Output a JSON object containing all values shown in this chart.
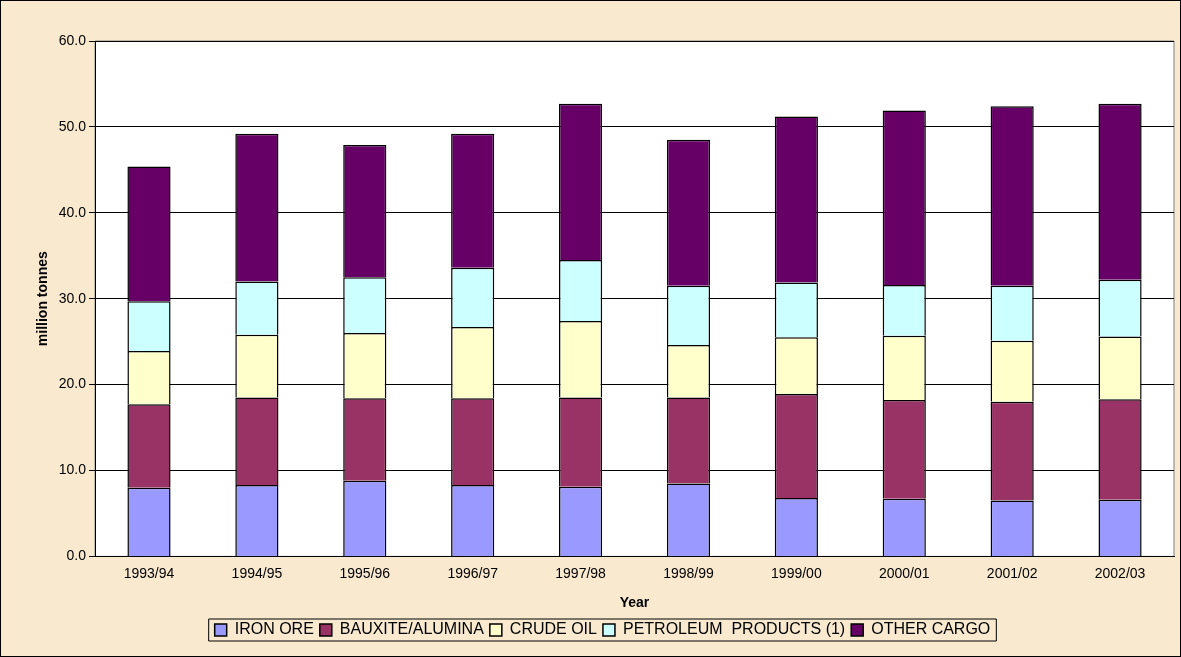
{
  "chart_data": {
    "type": "bar",
    "stacked": true,
    "xlabel": "Year",
    "ylabel": "million tonnes",
    "categories": [
      "1993/94",
      "1994/95",
      "1995/96",
      "1996/97",
      "1997/98",
      "1998/99",
      "1999/00",
      "2000/01",
      "2001/02",
      "2002/03"
    ],
    "series": [
      {
        "name": "IRON ORE",
        "color": "#9999ff",
        "values": [
          8.0,
          8.3,
          8.8,
          8.3,
          8.1,
          8.5,
          6.8,
          6.7,
          6.5,
          6.6
        ]
      },
      {
        "name": "BAUXITE/ALUMINA",
        "color": "#993366",
        "values": [
          9.7,
          10.2,
          9.6,
          10.1,
          10.4,
          10.0,
          12.1,
          11.5,
          11.5,
          11.7
        ]
      },
      {
        "name": "CRUDE OIL",
        "color": "#ffffcc",
        "values": [
          6.2,
          7.3,
          7.6,
          8.3,
          8.9,
          6.1,
          6.6,
          7.5,
          7.1,
          7.3
        ]
      },
      {
        "name": "PETROLEUM  PRODUCTS (1)",
        "color": "#ccffff",
        "values": [
          5.8,
          6.2,
          6.5,
          6.9,
          7.1,
          6.9,
          6.4,
          5.9,
          6.4,
          6.6
        ]
      },
      {
        "name": "OTHER CARGO",
        "color": "#660066",
        "values": [
          15.7,
          17.2,
          15.4,
          15.6,
          18.2,
          17.0,
          19.3,
          20.3,
          20.9,
          20.5
        ]
      }
    ],
    "ylim": [
      0,
      60
    ],
    "yticks": [
      {
        "value": 0,
        "label": "0.0"
      },
      {
        "value": 10,
        "label": "10.0"
      },
      {
        "value": 20,
        "label": "20.0"
      },
      {
        "value": 30,
        "label": "30.0"
      },
      {
        "value": 40,
        "label": "40.0"
      },
      {
        "value": 50,
        "label": "50.0"
      },
      {
        "value": 60,
        "label": "60.0"
      }
    ],
    "grid": "y",
    "legend": "bottom"
  }
}
